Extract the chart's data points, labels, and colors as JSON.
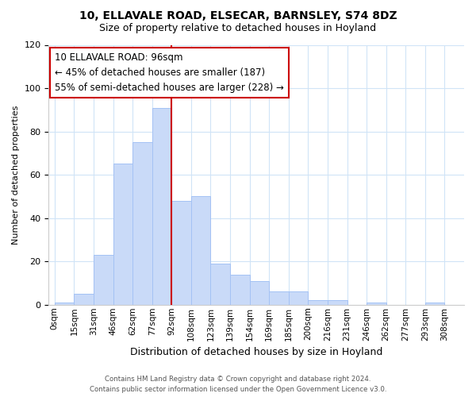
{
  "title1": "10, ELLAVALE ROAD, ELSECAR, BARNSLEY, S74 8DZ",
  "title2": "Size of property relative to detached houses in Hoyland",
  "xlabel": "Distribution of detached houses by size in Hoyland",
  "ylabel": "Number of detached properties",
  "bar_labels": [
    "0sqm",
    "15sqm",
    "31sqm",
    "46sqm",
    "62sqm",
    "77sqm",
    "92sqm",
    "108sqm",
    "123sqm",
    "139sqm",
    "154sqm",
    "169sqm",
    "185sqm",
    "200sqm",
    "216sqm",
    "231sqm",
    "246sqm",
    "262sqm",
    "277sqm",
    "293sqm",
    "308sqm"
  ],
  "bar_values": [
    1,
    5,
    23,
    65,
    75,
    91,
    48,
    50,
    19,
    14,
    11,
    6,
    6,
    2,
    2,
    0,
    1,
    0,
    0,
    1,
    0
  ],
  "bar_color": "#c9daf8",
  "bar_edge_color": "#a4c2f4",
  "highlight_line_color": "#cc0000",
  "highlight_bar_idx": 6,
  "ylim": [
    0,
    120
  ],
  "yticks": [
    0,
    20,
    40,
    60,
    80,
    100,
    120
  ],
  "annotation_line1": "10 ELLAVALE ROAD: 96sqm",
  "annotation_line2": "← 45% of detached houses are smaller (187)",
  "annotation_line3": "55% of semi-detached houses are larger (228) →",
  "annotation_box_color": "#ffffff",
  "annotation_box_edge": "#cc0000",
  "footer1": "Contains HM Land Registry data © Crown copyright and database right 2024.",
  "footer2": "Contains public sector information licensed under the Open Government Licence v3.0.",
  "background_color": "#ffffff",
  "grid_color": "#d0e4f7"
}
